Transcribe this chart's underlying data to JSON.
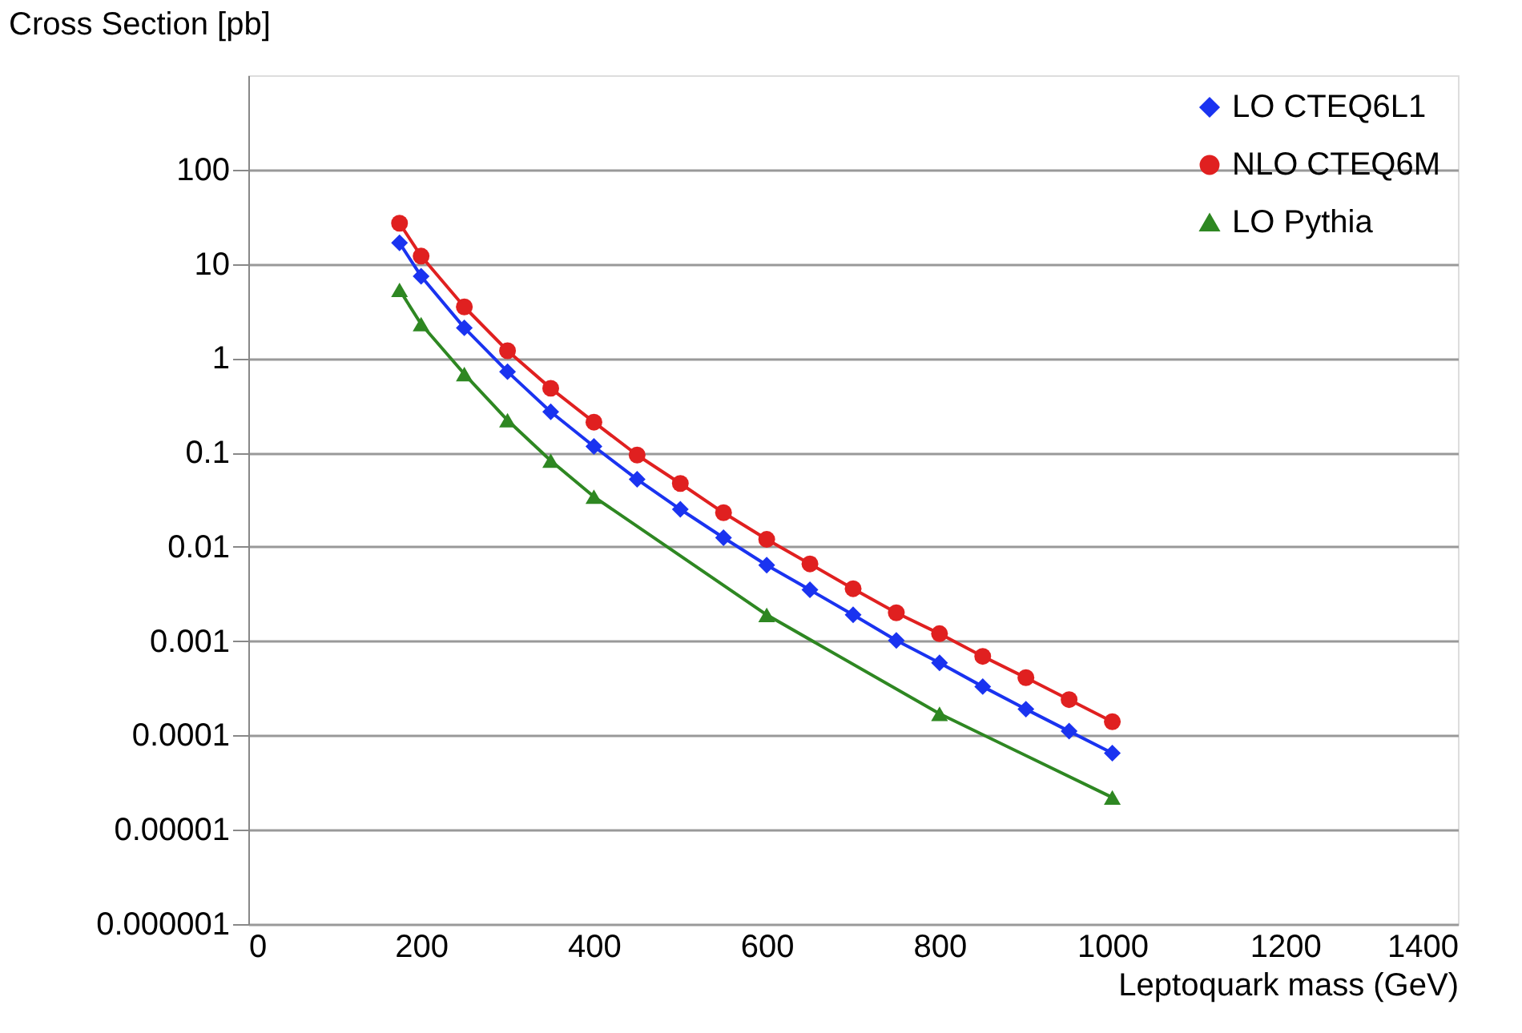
{
  "chart_data": {
    "type": "line",
    "ylabel": "Cross Section [pb]",
    "xlabel": "Leptoquark mass (GeV)",
    "x": [
      175,
      200,
      250,
      300,
      350,
      400,
      450,
      500,
      550,
      600,
      650,
      700,
      750,
      800,
      850,
      900,
      950,
      1000
    ],
    "series": [
      {
        "name": "LO CTEQ6L1",
        "color": "#1a33f0",
        "marker": "diamond",
        "values": [
          16.7,
          7.4,
          2.1,
          0.72,
          0.27,
          0.116,
          0.052,
          0.025,
          0.0125,
          0.0064,
          0.0035,
          0.0019,
          0.00102,
          0.00059,
          0.00033,
          0.00019,
          0.000111,
          6.5e-05
        ]
      },
      {
        "name": "NLO CTEQ6M",
        "color": "#e02020",
        "marker": "circle",
        "values": [
          27,
          12.1,
          3.5,
          1.2,
          0.48,
          0.21,
          0.094,
          0.047,
          0.023,
          0.012,
          0.0066,
          0.0036,
          0.002,
          0.0012,
          0.00069,
          0.00041,
          0.00024,
          0.00014
        ]
      },
      {
        "name": "LO Pythia",
        "color": "#2e8722",
        "marker": "triangle",
        "x": [
          175,
          200,
          250,
          300,
          350,
          400,
          600,
          800,
          1000
        ],
        "values": [
          5.3,
          2.3,
          0.68,
          0.22,
          0.082,
          0.034,
          0.0019,
          0.00017,
          2.2e-05
        ]
      }
    ],
    "xlim": [
      0,
      1400
    ],
    "xticks": [
      0,
      200,
      400,
      600,
      800,
      1000,
      1200,
      1400
    ],
    "ylim": [
      1e-06,
      1000
    ],
    "yticks": [
      {
        "value": 1e-06,
        "label": "0.000001"
      },
      {
        "value": 1e-05,
        "label": "0.00001"
      },
      {
        "value": 0.0001,
        "label": "0.0001"
      },
      {
        "value": 0.001,
        "label": "0.001"
      },
      {
        "value": 0.01,
        "label": "0.01"
      },
      {
        "value": 0.1,
        "label": "0.1"
      },
      1,
      10,
      100
    ],
    "log": "y",
    "grid": "y",
    "legend": "top right",
    "line_style": "solid"
  }
}
